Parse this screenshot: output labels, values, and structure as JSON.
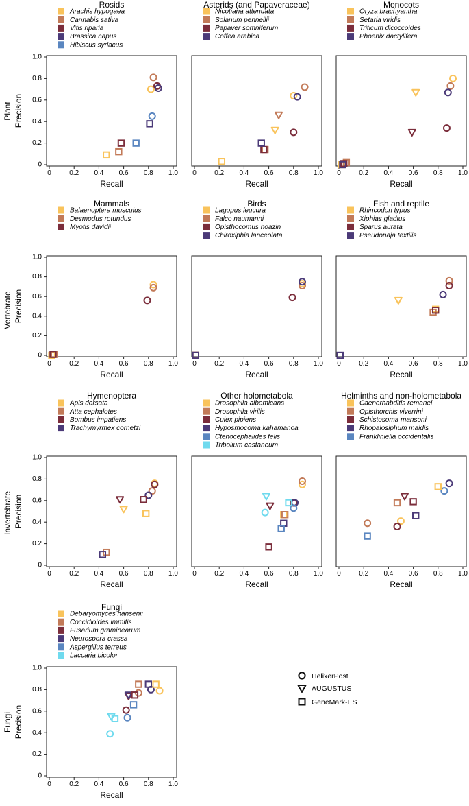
{
  "figure": {
    "row_labels": [
      "Plant",
      "Vertebrate",
      "Invertebrate",
      "Fungi"
    ],
    "x_label": "Recall",
    "y_label": "Precision",
    "palette": [
      "#F9C35B",
      "#C27A58",
      "#7B2D3B",
      "#4B3A78",
      "#5A86C0",
      "#6FDAEE"
    ],
    "legend": [
      {
        "label": "HelixerPost",
        "shape": "circle"
      },
      {
        "label": "AUGUSTUS",
        "shape": "triangle"
      },
      {
        "label": "GeneMark-ES",
        "shape": "square"
      }
    ],
    "x_ticks": [
      "0",
      "0.2",
      "0.4",
      "0.6",
      "0.8",
      "1.0"
    ],
    "y_ticks": [
      "0",
      "0.2",
      "0.4",
      "0.6",
      "0.8",
      "1.0"
    ]
  },
  "chart_data": [
    {
      "type": "scatter",
      "title": "Rosids",
      "xlabel": "Recall",
      "ylabel": "Precision",
      "xlim": [
        0,
        1
      ],
      "ylim": [
        0,
        1
      ],
      "species": [
        "Arachis hypogaea",
        "Cannabis sativa",
        "Vitis riparia",
        "Brassica napus",
        "Hibiscus syriacus"
      ],
      "points": [
        {
          "s": 0,
          "m": "circle",
          "x": 0.82,
          "y": 0.7
        },
        {
          "s": 1,
          "m": "circle",
          "x": 0.84,
          "y": 0.81
        },
        {
          "s": 2,
          "m": "circle",
          "x": 0.87,
          "y": 0.73
        },
        {
          "s": 3,
          "m": "circle",
          "x": 0.88,
          "y": 0.71
        },
        {
          "s": 4,
          "m": "circle",
          "x": 0.83,
          "y": 0.45
        },
        {
          "s": 0,
          "m": "square",
          "x": 0.46,
          "y": 0.09
        },
        {
          "s": 1,
          "m": "square",
          "x": 0.56,
          "y": 0.12
        },
        {
          "s": 2,
          "m": "square",
          "x": 0.58,
          "y": 0.2
        },
        {
          "s": 3,
          "m": "square",
          "x": 0.81,
          "y": 0.38
        },
        {
          "s": 4,
          "m": "square",
          "x": 0.7,
          "y": 0.2
        }
      ]
    },
    {
      "type": "scatter",
      "title": "Asterids (and Papaveraceae)",
      "xlabel": "Recall",
      "ylabel": "Precision",
      "xlim": [
        0,
        1
      ],
      "ylim": [
        0,
        1
      ],
      "species": [
        "Nicotiana attenuata",
        "Solanum pennellii",
        "Papaver somniferum",
        "Coffea arabica"
      ],
      "points": [
        {
          "s": 0,
          "m": "circle",
          "x": 0.8,
          "y": 0.64
        },
        {
          "s": 1,
          "m": "circle",
          "x": 0.89,
          "y": 0.72
        },
        {
          "s": 2,
          "m": "circle",
          "x": 0.8,
          "y": 0.3
        },
        {
          "s": 3,
          "m": "circle",
          "x": 0.83,
          "y": 0.63
        },
        {
          "s": 0,
          "m": "triangle",
          "x": 0.65,
          "y": 0.32
        },
        {
          "s": 1,
          "m": "triangle",
          "x": 0.68,
          "y": 0.46
        },
        {
          "s": 0,
          "m": "square",
          "x": 0.22,
          "y": 0.03
        },
        {
          "s": 1,
          "m": "square",
          "x": 0.57,
          "y": 0.14
        },
        {
          "s": 2,
          "m": "square",
          "x": 0.56,
          "y": 0.14
        },
        {
          "s": 3,
          "m": "square",
          "x": 0.54,
          "y": 0.2
        }
      ]
    },
    {
      "type": "scatter",
      "title": "Monocots",
      "xlabel": "Recall",
      "ylabel": "Precision",
      "xlim": [
        0,
        1
      ],
      "ylim": [
        0,
        1
      ],
      "species": [
        "Oryza brachyantha",
        "Setaria viridis",
        "Triticum dicoccoides",
        "Phoenix dactylifera"
      ],
      "points": [
        {
          "s": 0,
          "m": "circle",
          "x": 0.92,
          "y": 0.8
        },
        {
          "s": 1,
          "m": "circle",
          "x": 0.9,
          "y": 0.73
        },
        {
          "s": 2,
          "m": "circle",
          "x": 0.87,
          "y": 0.34
        },
        {
          "s": 3,
          "m": "circle",
          "x": 0.88,
          "y": 0.67
        },
        {
          "s": 0,
          "m": "triangle",
          "x": 0.62,
          "y": 0.67
        },
        {
          "s": 2,
          "m": "triangle",
          "x": 0.59,
          "y": 0.3
        },
        {
          "s": 0,
          "m": "square",
          "x": 0.02,
          "y": 0.0
        },
        {
          "s": 1,
          "m": "square",
          "x": 0.06,
          "y": 0.02
        },
        {
          "s": 2,
          "m": "square",
          "x": 0.04,
          "y": 0.01
        },
        {
          "s": 3,
          "m": "square",
          "x": 0.03,
          "y": 0.0
        }
      ]
    },
    {
      "type": "scatter",
      "title": "Mammals",
      "xlabel": "Recall",
      "ylabel": "Precision",
      "xlim": [
        0,
        1
      ],
      "ylim": [
        0,
        1
      ],
      "species": [
        "Balaenoptera musculus",
        "Desmodus rotundus",
        "Myotis davidii"
      ],
      "points": [
        {
          "s": 0,
          "m": "circle",
          "x": 0.84,
          "y": 0.72
        },
        {
          "s": 1,
          "m": "circle",
          "x": 0.84,
          "y": 0.69
        },
        {
          "s": 2,
          "m": "circle",
          "x": 0.79,
          "y": 0.56
        },
        {
          "s": 0,
          "m": "square",
          "x": 0.02,
          "y": 0.0
        },
        {
          "s": 1,
          "m": "square",
          "x": 0.04,
          "y": 0.01
        },
        {
          "s": 2,
          "m": "square",
          "x": 0.03,
          "y": 0.01
        }
      ]
    },
    {
      "type": "scatter",
      "title": "Birds",
      "xlabel": "Recall",
      "ylabel": "Precision",
      "xlim": [
        0,
        1
      ],
      "ylim": [
        0,
        1
      ],
      "species": [
        "Lagopus leucura",
        "Falco naumanni",
        "Opisthocomus hoazin",
        "Chiroxiphia lanceolata"
      ],
      "points": [
        {
          "s": 0,
          "m": "circle",
          "x": 0.87,
          "y": 0.73
        },
        {
          "s": 1,
          "m": "circle",
          "x": 0.87,
          "y": 0.71
        },
        {
          "s": 2,
          "m": "circle",
          "x": 0.79,
          "y": 0.59
        },
        {
          "s": 3,
          "m": "circle",
          "x": 0.87,
          "y": 0.75
        },
        {
          "s": 0,
          "m": "square",
          "x": 0.01,
          "y": 0.0
        },
        {
          "s": 1,
          "m": "square",
          "x": 0.01,
          "y": 0.0
        },
        {
          "s": 2,
          "m": "square",
          "x": 0.01,
          "y": 0.0
        },
        {
          "s": 3,
          "m": "square",
          "x": 0.01,
          "y": 0.0
        }
      ]
    },
    {
      "type": "scatter",
      "title": "Fish and reptile",
      "xlabel": "Recall",
      "ylabel": "Precision",
      "xlim": [
        0,
        1
      ],
      "ylim": [
        0,
        1
      ],
      "species": [
        "Rhincodon typus",
        "Xiphias gladius",
        "Sparus aurata",
        "Pseudonaja textilis"
      ],
      "points": [
        {
          "s": 1,
          "m": "circle",
          "x": 0.89,
          "y": 0.76
        },
        {
          "s": 2,
          "m": "circle",
          "x": 0.89,
          "y": 0.71
        },
        {
          "s": 3,
          "m": "circle",
          "x": 0.84,
          "y": 0.62
        },
        {
          "s": 0,
          "m": "triangle",
          "x": 0.48,
          "y": 0.56
        },
        {
          "s": 0,
          "m": "square",
          "x": 0.78,
          "y": 0.47
        },
        {
          "s": 1,
          "m": "square",
          "x": 0.76,
          "y": 0.44
        },
        {
          "s": 2,
          "m": "square",
          "x": 0.78,
          "y": 0.46
        },
        {
          "s": 3,
          "m": "square",
          "x": 0.01,
          "y": 0.0
        }
      ]
    },
    {
      "type": "scatter",
      "title": "Hymenoptera",
      "xlabel": "Recall",
      "ylabel": "Precision",
      "xlim": [
        0,
        1
      ],
      "ylim": [
        0,
        1
      ],
      "species": [
        "Apis dorsata",
        "Atta cephalotes",
        "Bombus impatiens",
        "Trachymyrmex cornetzi"
      ],
      "points": [
        {
          "s": 0,
          "m": "circle",
          "x": 0.85,
          "y": 0.76
        },
        {
          "s": 1,
          "m": "circle",
          "x": 0.83,
          "y": 0.69
        },
        {
          "s": 2,
          "m": "circle",
          "x": 0.85,
          "y": 0.75
        },
        {
          "s": 3,
          "m": "circle",
          "x": 0.8,
          "y": 0.65
        },
        {
          "s": 0,
          "m": "triangle",
          "x": 0.6,
          "y": 0.52
        },
        {
          "s": 2,
          "m": "triangle",
          "x": 0.57,
          "y": 0.61
        },
        {
          "s": 0,
          "m": "square",
          "x": 0.78,
          "y": 0.48
        },
        {
          "s": 1,
          "m": "square",
          "x": 0.46,
          "y": 0.12
        },
        {
          "s": 2,
          "m": "square",
          "x": 0.76,
          "y": 0.61
        },
        {
          "s": 3,
          "m": "square",
          "x": 0.43,
          "y": 0.1
        }
      ]
    },
    {
      "type": "scatter",
      "title": "Other holometabola",
      "xlabel": "Recall",
      "ylabel": "Precision",
      "xlim": [
        0,
        1
      ],
      "ylim": [
        0,
        1
      ],
      "species": [
        "Drosophila albomicans",
        "Drosophila virilis",
        "Culex pipiens",
        "Hyposmocoma kahamanoa",
        "Ctenocephalides felis",
        "Tribolium castaneum"
      ],
      "points": [
        {
          "s": 0,
          "m": "circle",
          "x": 0.87,
          "y": 0.75
        },
        {
          "s": 1,
          "m": "circle",
          "x": 0.87,
          "y": 0.78
        },
        {
          "s": 2,
          "m": "circle",
          "x": 0.8,
          "y": 0.58
        },
        {
          "s": 3,
          "m": "circle",
          "x": 0.81,
          "y": 0.58
        },
        {
          "s": 4,
          "m": "circle",
          "x": 0.8,
          "y": 0.53
        },
        {
          "s": 5,
          "m": "circle",
          "x": 0.57,
          "y": 0.49
        },
        {
          "s": 2,
          "m": "triangle",
          "x": 0.61,
          "y": 0.55
        },
        {
          "s": 5,
          "m": "triangle",
          "x": 0.58,
          "y": 0.64
        },
        {
          "s": 0,
          "m": "square",
          "x": 0.72,
          "y": 0.47
        },
        {
          "s": 1,
          "m": "square",
          "x": 0.73,
          "y": 0.47
        },
        {
          "s": 2,
          "m": "square",
          "x": 0.6,
          "y": 0.17
        },
        {
          "s": 3,
          "m": "square",
          "x": 0.72,
          "y": 0.39
        },
        {
          "s": 4,
          "m": "square",
          "x": 0.7,
          "y": 0.34
        },
        {
          "s": 5,
          "m": "square",
          "x": 0.76,
          "y": 0.58
        }
      ]
    },
    {
      "type": "scatter",
      "title": "Helminths and non-holometabola",
      "xlabel": "Recall",
      "ylabel": "Precision",
      "xlim": [
        0,
        1
      ],
      "ylim": [
        0,
        1
      ],
      "species": [
        "Caenorhabditis remanei",
        "Opisthorchis viverrini",
        "Schistosoma mansoni",
        "Rhopalosiphum maidis",
        "Frankliniella occidentalis"
      ],
      "points": [
        {
          "s": 0,
          "m": "circle",
          "x": 0.5,
          "y": 0.41
        },
        {
          "s": 1,
          "m": "circle",
          "x": 0.23,
          "y": 0.39
        },
        {
          "s": 2,
          "m": "circle",
          "x": 0.47,
          "y": 0.36
        },
        {
          "s": 3,
          "m": "circle",
          "x": 0.89,
          "y": 0.76
        },
        {
          "s": 4,
          "m": "circle",
          "x": 0.85,
          "y": 0.69
        },
        {
          "s": 2,
          "m": "triangle",
          "x": 0.53,
          "y": 0.64
        },
        {
          "s": 0,
          "m": "square",
          "x": 0.8,
          "y": 0.73
        },
        {
          "s": 1,
          "m": "square",
          "x": 0.47,
          "y": 0.58
        },
        {
          "s": 2,
          "m": "square",
          "x": 0.6,
          "y": 0.59
        },
        {
          "s": 3,
          "m": "square",
          "x": 0.62,
          "y": 0.46
        },
        {
          "s": 4,
          "m": "square",
          "x": 0.23,
          "y": 0.27
        }
      ]
    },
    {
      "type": "scatter",
      "title": "Fungi",
      "xlabel": "Recall",
      "ylabel": "Precision",
      "xlim": [
        0,
        1
      ],
      "ylim": [
        0,
        1
      ],
      "species": [
        "Debaryomyces hansenii",
        "Coccidioides immitis",
        "Fusarium graminearum",
        "Neurospora crassa",
        "Aspergillus terreus",
        "Laccaria bicolor"
      ],
      "points": [
        {
          "s": 0,
          "m": "circle",
          "x": 0.89,
          "y": 0.79
        },
        {
          "s": 1,
          "m": "circle",
          "x": 0.72,
          "y": 0.77
        },
        {
          "s": 2,
          "m": "circle",
          "x": 0.62,
          "y": 0.61
        },
        {
          "s": 3,
          "m": "circle",
          "x": 0.82,
          "y": 0.8
        },
        {
          "s": 4,
          "m": "circle",
          "x": 0.63,
          "y": 0.54
        },
        {
          "s": 5,
          "m": "circle",
          "x": 0.49,
          "y": 0.39
        },
        {
          "s": 2,
          "m": "triangle",
          "x": 0.64,
          "y": 0.74
        },
        {
          "s": 3,
          "m": "triangle",
          "x": 0.64,
          "y": 0.75
        },
        {
          "s": 5,
          "m": "triangle",
          "x": 0.5,
          "y": 0.55
        },
        {
          "s": 0,
          "m": "square",
          "x": 0.86,
          "y": 0.85
        },
        {
          "s": 1,
          "m": "square",
          "x": 0.72,
          "y": 0.85
        },
        {
          "s": 2,
          "m": "square",
          "x": 0.69,
          "y": 0.75
        },
        {
          "s": 3,
          "m": "square",
          "x": 0.8,
          "y": 0.85
        },
        {
          "s": 4,
          "m": "square",
          "x": 0.68,
          "y": 0.66
        },
        {
          "s": 5,
          "m": "square",
          "x": 0.53,
          "y": 0.53
        }
      ]
    }
  ]
}
